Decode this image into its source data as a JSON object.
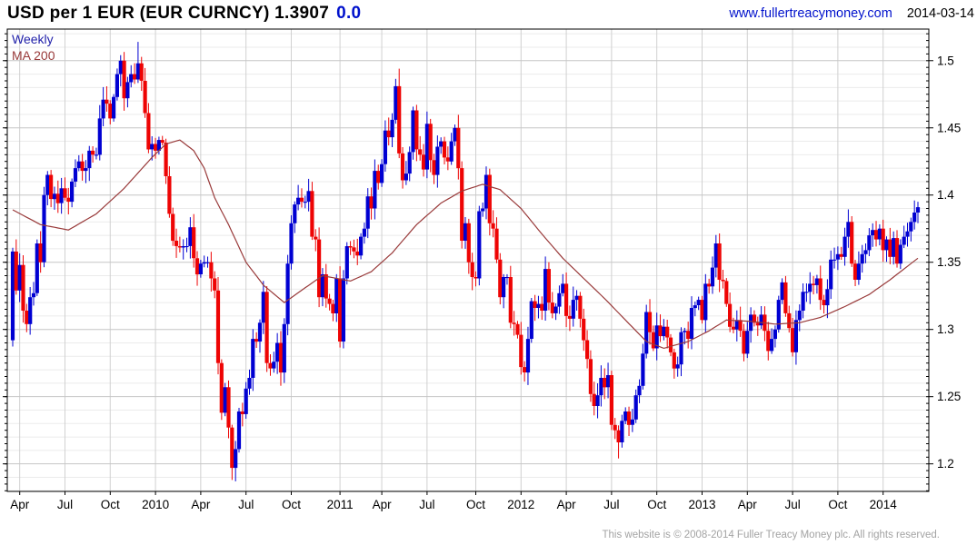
{
  "header": {
    "title": "USD per 1 EUR (EUR CURNCY) 1.3907",
    "change": "0.0",
    "website": "www.fullertreacymoney.com",
    "date": "2014-03-14"
  },
  "legend": {
    "weekly": "Weekly",
    "ma": "MA 200"
  },
  "footer": {
    "copyright": "This website is © 2008-2014 Fuller Treacy Money plc. All rights reserved."
  },
  "colors": {
    "up": "#0000d2",
    "down": "#ee0404",
    "ma": "#993a3a",
    "weekly_label": "#2222aa",
    "link": "#0011cc",
    "change": "#0011cc",
    "grid_minor": "#ebebeb",
    "grid_major": "#c6c6c6",
    "grid_vertical": "#d0d0d0",
    "axis": "#000000",
    "footer_text": "#a3a3a3"
  },
  "chart_data": {
    "type": "candlestick",
    "interval": "weekly",
    "title": "USD per 1 EUR (EUR CURNCY)",
    "last_price": 1.3907,
    "start_date": "2009-03-20",
    "end_date": "2014-03-14",
    "ylim": [
      1.1795,
      1.5235
    ],
    "y_minor_step": 0.01,
    "y_edge_tick_step": 0.005,
    "grid": true,
    "legend_position": "top-left",
    "y_ticks": [
      {
        "v": 1.5,
        "label": "1.5"
      },
      {
        "v": 1.45,
        "label": "1.45"
      },
      {
        "v": 1.4,
        "label": "1.4"
      },
      {
        "v": 1.35,
        "label": "1.35"
      },
      {
        "v": 1.3,
        "label": "1.3"
      },
      {
        "v": 1.25,
        "label": "1.25"
      },
      {
        "v": 1.2,
        "label": "1.2"
      }
    ],
    "x_ticks": [
      {
        "i": 2,
        "label": "Apr"
      },
      {
        "i": 15,
        "label": "Jul"
      },
      {
        "i": 28,
        "label": "Oct"
      },
      {
        "i": 41,
        "label": "2010"
      },
      {
        "i": 54,
        "label": "Apr"
      },
      {
        "i": 67,
        "label": "Jul"
      },
      {
        "i": 80,
        "label": "Oct"
      },
      {
        "i": 94,
        "label": "2011"
      },
      {
        "i": 106,
        "label": "Apr"
      },
      {
        "i": 119,
        "label": "Jul"
      },
      {
        "i": 133,
        "label": "Oct"
      },
      {
        "i": 146,
        "label": "2012"
      },
      {
        "i": 159,
        "label": "Apr"
      },
      {
        "i": 172,
        "label": "Jul"
      },
      {
        "i": 185,
        "label": "Oct"
      },
      {
        "i": 198,
        "label": "2013"
      },
      {
        "i": 211,
        "label": "Apr"
      },
      {
        "i": 224,
        "label": "Jul"
      },
      {
        "i": 237,
        "label": "Oct"
      },
      {
        "i": 250,
        "label": "2014"
      }
    ],
    "first_open": 1.292,
    "weekly_closes": [
      1.358,
      1.329,
      1.348,
      1.314,
      1.304,
      1.324,
      1.327,
      1.364,
      1.35,
      1.4,
      1.415,
      1.397,
      1.401,
      1.394,
      1.405,
      1.398,
      1.395,
      1.41,
      1.42,
      1.425,
      1.418,
      1.42,
      1.433,
      1.43,
      1.43,
      1.457,
      1.471,
      1.468,
      1.457,
      1.473,
      1.49,
      1.5,
      1.472,
      1.484,
      1.49,
      1.486,
      1.498,
      1.485,
      1.461,
      1.434,
      1.438,
      1.433,
      1.441,
      1.439,
      1.414,
      1.386,
      1.366,
      1.362,
      1.361,
      1.362,
      1.362,
      1.376,
      1.353,
      1.341,
      1.349,
      1.35,
      1.35,
      1.338,
      1.329,
      1.275,
      1.238,
      1.257,
      1.227,
      1.197,
      1.211,
      1.239,
      1.237,
      1.256,
      1.264,
      1.293,
      1.291,
      1.305,
      1.328,
      1.275,
      1.271,
      1.276,
      1.29,
      1.268,
      1.304,
      1.349,
      1.379,
      1.393,
      1.398,
      1.395,
      1.395,
      1.403,
      1.369,
      1.367,
      1.324,
      1.341,
      1.323,
      1.319,
      1.312,
      1.338,
      1.291,
      1.338,
      1.362,
      1.361,
      1.358,
      1.355,
      1.369,
      1.375,
      1.399,
      1.39,
      1.418,
      1.409,
      1.423,
      1.448,
      1.443,
      1.456,
      1.481,
      1.431,
      1.411,
      1.416,
      1.432,
      1.463,
      1.434,
      1.43,
      1.419,
      1.453,
      1.426,
      1.415,
      1.436,
      1.44,
      1.428,
      1.425,
      1.44,
      1.45,
      1.42,
      1.366,
      1.379,
      1.35,
      1.339,
      1.338,
      1.388,
      1.39,
      1.415,
      1.379,
      1.375,
      1.352,
      1.324,
      1.339,
      1.339,
      1.305,
      1.304,
      1.296,
      1.272,
      1.268,
      1.293,
      1.321,
      1.316,
      1.319,
      1.314,
      1.345,
      1.32,
      1.312,
      1.317,
      1.327,
      1.334,
      1.31,
      1.308,
      1.322,
      1.325,
      1.308,
      1.292,
      1.278,
      1.252,
      1.243,
      1.251,
      1.264,
      1.257,
      1.266,
      1.229,
      1.225,
      1.216,
      1.232,
      1.239,
      1.229,
      1.233,
      1.251,
      1.258,
      1.282,
      1.313,
      1.298,
      1.286,
      1.303,
      1.295,
      1.302,
      1.294,
      1.283,
      1.271,
      1.274,
      1.298,
      1.299,
      1.293,
      1.316,
      1.318,
      1.322,
      1.307,
      1.334,
      1.332,
      1.346,
      1.364,
      1.337,
      1.336,
      1.319,
      1.302,
      1.3,
      1.307,
      1.299,
      1.282,
      1.299,
      1.311,
      1.305,
      1.303,
      1.311,
      1.299,
      1.284,
      1.293,
      1.3,
      1.322,
      1.335,
      1.312,
      1.301,
      1.283,
      1.307,
      1.314,
      1.328,
      1.328,
      1.334,
      1.333,
      1.338,
      1.322,
      1.318,
      1.33,
      1.352,
      1.352,
      1.356,
      1.354,
      1.369,
      1.38,
      1.349,
      1.337,
      1.349,
      1.356,
      1.359,
      1.37,
      1.374,
      1.367,
      1.375,
      1.359,
      1.367,
      1.354,
      1.368,
      1.349,
      1.363,
      1.369,
      1.373,
      1.38,
      1.387,
      1.391
    ],
    "wick_overrides": [
      {
        "index": 36,
        "high": 1.514
      },
      {
        "index": 63,
        "low": 1.188
      },
      {
        "index": 111,
        "high": 1.494
      },
      {
        "index": 174,
        "low": 1.204
      },
      {
        "index": 260,
        "high": 1.395
      }
    ],
    "ma200": {
      "label": "MA 200",
      "anchors": [
        [
          0,
          1.389
        ],
        [
          8,
          1.378
        ],
        [
          16,
          1.374
        ],
        [
          24,
          1.386
        ],
        [
          32,
          1.405
        ],
        [
          40,
          1.428
        ],
        [
          44,
          1.438
        ],
        [
          48,
          1.441
        ],
        [
          52,
          1.433
        ],
        [
          55,
          1.42
        ],
        [
          58,
          1.398
        ],
        [
          62,
          1.378
        ],
        [
          67,
          1.35
        ],
        [
          72,
          1.333
        ],
        [
          78,
          1.32
        ],
        [
          84,
          1.331
        ],
        [
          89,
          1.34
        ],
        [
          93,
          1.338
        ],
        [
          97,
          1.336
        ],
        [
          103,
          1.343
        ],
        [
          109,
          1.357
        ],
        [
          116,
          1.378
        ],
        [
          123,
          1.394
        ],
        [
          129,
          1.403
        ],
        [
          135,
          1.408
        ],
        [
          140,
          1.404
        ],
        [
          146,
          1.39
        ],
        [
          152,
          1.371
        ],
        [
          158,
          1.353
        ],
        [
          164,
          1.338
        ],
        [
          170,
          1.323
        ],
        [
          176,
          1.307
        ],
        [
          182,
          1.291
        ],
        [
          187,
          1.286
        ],
        [
          194,
          1.291
        ],
        [
          200,
          1.299
        ],
        [
          205,
          1.307
        ],
        [
          212,
          1.306
        ],
        [
          219,
          1.304
        ],
        [
          226,
          1.305
        ],
        [
          232,
          1.309
        ],
        [
          239,
          1.317
        ],
        [
          246,
          1.326
        ],
        [
          252,
          1.337
        ],
        [
          257,
          1.347
        ],
        [
          260,
          1.353
        ]
      ]
    }
  }
}
